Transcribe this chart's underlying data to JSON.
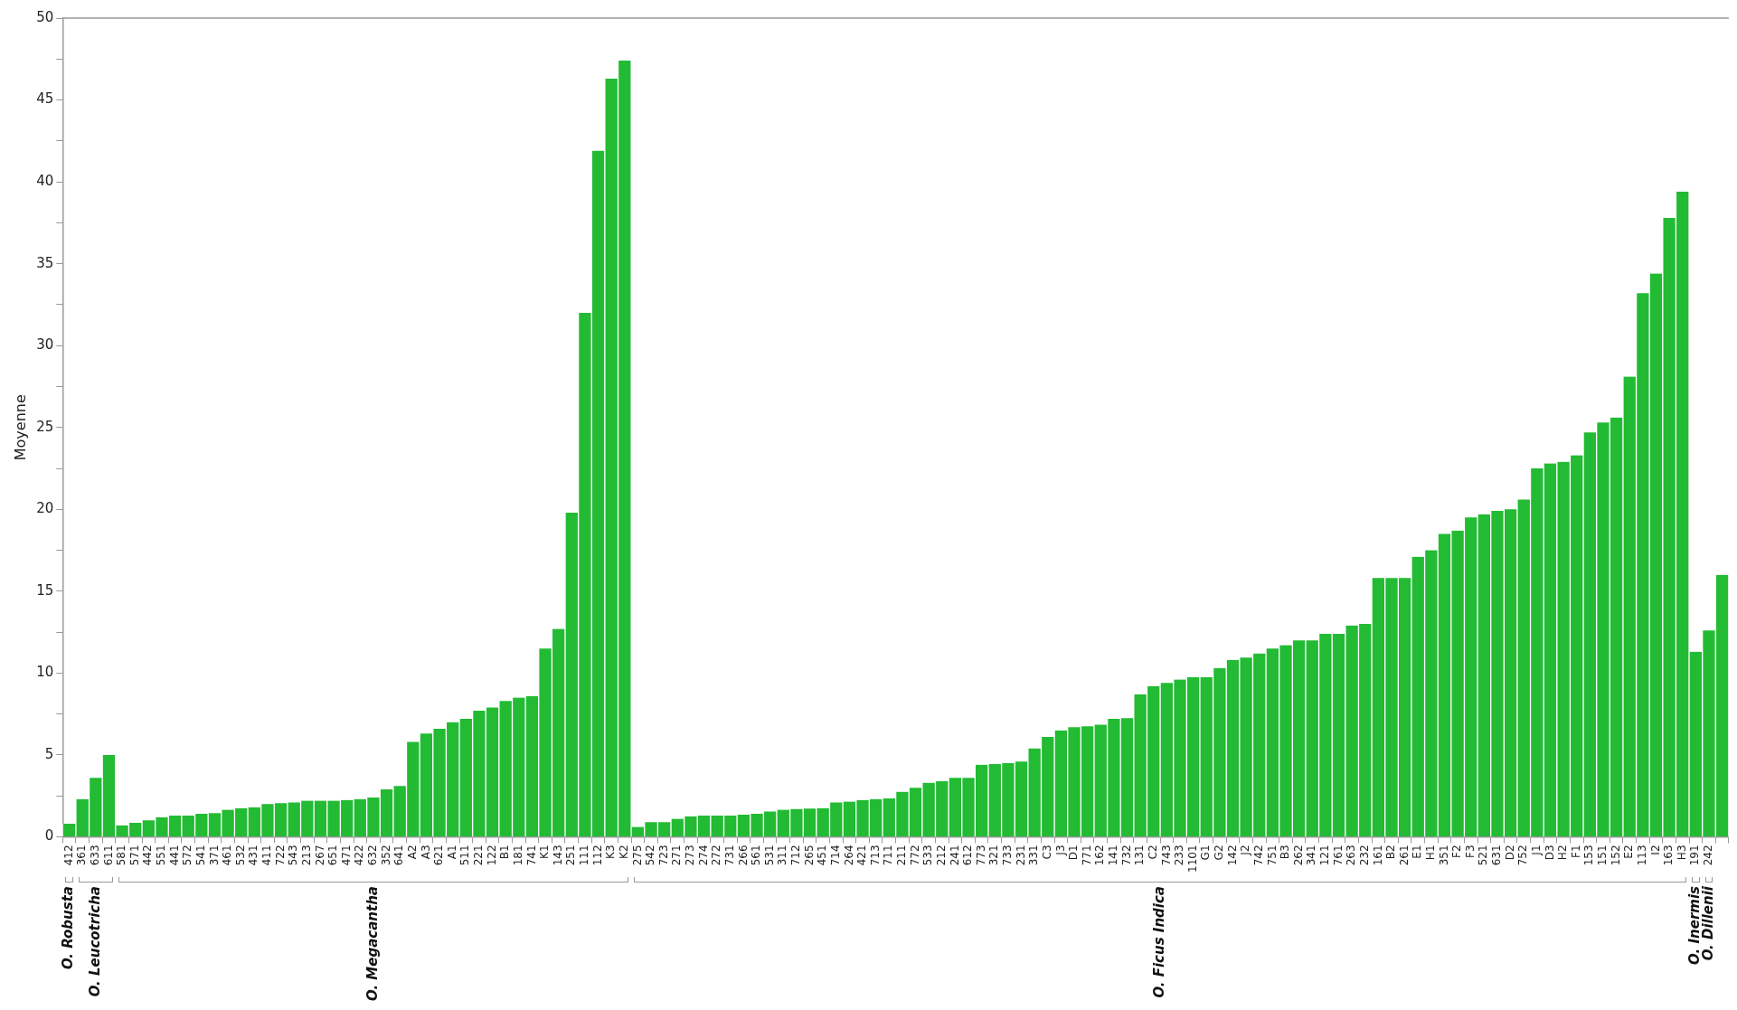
{
  "chart_data": {
    "type": "bar",
    "ylabel": "Moyenne",
    "color": "#22bb33",
    "categories": [
      "412",
      "361",
      "633",
      "611",
      "581",
      "571",
      "442",
      "551",
      "441",
      "572",
      "541",
      "371",
      "461",
      "532",
      "431",
      "411",
      "722",
      "543",
      "213",
      "267",
      "651",
      "471",
      "422",
      "632",
      "352",
      "641",
      "A2",
      "A3",
      "621",
      "A1",
      "511",
      "221",
      "122",
      "B1",
      "181",
      "741",
      "K1",
      "143",
      "251",
      "111",
      "112",
      "K3",
      "K2",
      "275",
      "542",
      "723",
      "271",
      "273",
      "274",
      "272",
      "731",
      "266",
      "561",
      "531",
      "311",
      "712",
      "265",
      "451",
      "714",
      "264",
      "421",
      "713",
      "711",
      "211",
      "772",
      "533",
      "212",
      "241",
      "612",
      "773",
      "321",
      "733",
      "231",
      "331",
      "C3",
      "J3",
      "D1",
      "771",
      "162",
      "141",
      "732",
      "131",
      "C2",
      "743",
      "233",
      "1101",
      "G1",
      "G2",
      "142",
      "J2",
      "742",
      "751",
      "B3",
      "262",
      "341",
      "121",
      "761",
      "263",
      "232",
      "161",
      "B2",
      "261",
      "E1",
      "H1",
      "351",
      "F2",
      "F3",
      "521",
      "631",
      "D2",
      "752",
      "J1",
      "D3",
      "H2",
      "F1",
      "153",
      "151",
      "152",
      "E2",
      "113",
      "I2",
      "163",
      "H3",
      "191",
      "242",
      null
    ],
    "values": [
      0.8,
      2.3,
      3.6,
      5.0,
      0.7,
      0.85,
      1.0,
      1.2,
      1.3,
      1.3,
      1.4,
      1.45,
      1.65,
      1.75,
      1.8,
      2.0,
      2.05,
      2.1,
      2.2,
      2.2,
      2.2,
      2.25,
      2.3,
      2.4,
      2.9,
      3.1,
      5.8,
      6.3,
      6.6,
      7.0,
      7.2,
      7.7,
      7.9,
      8.3,
      8.5,
      8.6,
      11.5,
      12.7,
      19.8,
      32.0,
      41.9,
      46.3,
      47.4,
      0.6,
      0.9,
      0.9,
      1.1,
      1.25,
      1.3,
      1.3,
      1.3,
      1.35,
      1.4,
      1.55,
      1.65,
      1.7,
      1.72,
      1.75,
      2.1,
      2.15,
      2.25,
      2.3,
      2.35,
      2.75,
      3.0,
      3.3,
      3.4,
      3.6,
      3.6,
      4.4,
      4.45,
      4.5,
      4.6,
      5.4,
      6.1,
      6.5,
      6.7,
      6.75,
      6.85,
      7.2,
      7.25,
      8.7,
      9.2,
      9.4,
      9.6,
      9.75,
      9.75,
      10.3,
      10.8,
      10.95,
      11.2,
      11.5,
      11.7,
      12.0,
      12.0,
      12.4,
      12.4,
      12.9,
      13.0,
      15.8,
      15.8,
      15.8,
      17.1,
      17.5,
      18.5,
      18.7,
      19.5,
      19.7,
      19.9,
      20.0,
      20.6,
      22.5,
      22.8,
      22.9,
      23.3,
      24.7,
      25.3,
      25.6,
      28.1,
      33.2,
      34.4,
      37.8,
      39.4,
      11.3,
      12.6,
      16.0
    ],
    "ylim": [
      0,
      50
    ],
    "yticks": [
      0,
      {
        "value": 2.5,
        "label": null
      },
      5,
      {
        "value": 7.5,
        "label": null
      },
      10,
      {
        "value": 12.5,
        "label": null
      },
      15,
      {
        "value": 17.5,
        "label": null
      },
      20,
      {
        "value": 22.5,
        "label": null
      },
      25,
      {
        "value": 27.5,
        "label": null
      },
      30,
      {
        "value": 32.5,
        "label": null
      },
      35,
      {
        "value": 37.5,
        "label": null
      },
      40,
      {
        "value": 42.5,
        "label": null
      },
      45,
      {
        "value": 47.5,
        "label": null
      },
      50
    ],
    "grid": false,
    "legend": false,
    "annotations": [
      "O. Robusta",
      "O. Leucotricha",
      "O. Megacantha",
      "O. Ficus Indica",
      "O. Inermis",
      "O. Dillenii"
    ]
  }
}
